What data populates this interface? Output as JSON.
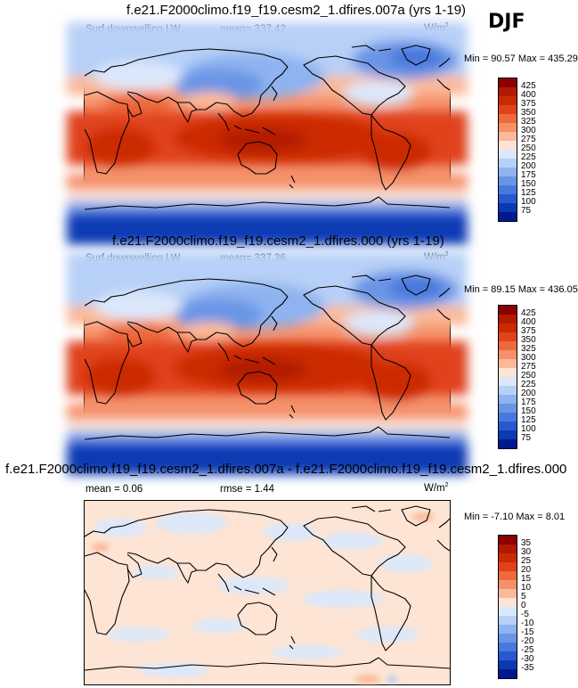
{
  "season": "DJF",
  "panels": [
    {
      "title": "f.e21.F2000climo.f19_f19.cesm2_1.dfires.007a (yrs 1-19)",
      "left_label": "Surf downwelling LW",
      "center_label": "mean= 337.42",
      "units_base": "W/m",
      "units_exp": "2",
      "minmax": "Min =  90.57 Max = 435.29",
      "colorbar": {
        "labels": [
          "425",
          "400",
          "375",
          "350",
          "325",
          "300",
          "275",
          "250",
          "225",
          "200",
          "175",
          "150",
          "125",
          "100",
          "75"
        ],
        "colors": [
          "#8c0000",
          "#b21a00",
          "#cc2a00",
          "#e0431a",
          "#ee6a3c",
          "#f5916a",
          "#fbb99a",
          "#fde4d4",
          "#dbe8fb",
          "#b7d0f7",
          "#8eb3f0",
          "#6a95e6",
          "#4778dc",
          "#2659d0",
          "#0a3ab3",
          "#001a8c"
        ]
      },
      "map_type": "absolute"
    },
    {
      "title": "f.e21.F2000climo.f19_f19.cesm2_1.dfires.000 (yrs 1-19)",
      "left_label": "Surf downwelling LW",
      "center_label": "mean= 337.36",
      "units_base": "W/m",
      "units_exp": "2",
      "minmax": "Min =  89.15 Max = 436.05",
      "colorbar": {
        "labels": [
          "425",
          "400",
          "375",
          "350",
          "325",
          "300",
          "275",
          "250",
          "225",
          "200",
          "175",
          "150",
          "125",
          "100",
          "75"
        ],
        "colors": [
          "#8c0000",
          "#b21a00",
          "#cc2a00",
          "#e0431a",
          "#ee6a3c",
          "#f5916a",
          "#fbb99a",
          "#fde4d4",
          "#dbe8fb",
          "#b7d0f7",
          "#8eb3f0",
          "#6a95e6",
          "#4778dc",
          "#2659d0",
          "#0a3ab3",
          "#001a8c"
        ]
      },
      "map_type": "absolute"
    },
    {
      "title": "f.e21.F2000climo.f19_f19.cesm2_1.dfires.007a - f.e21.F2000climo.f19_f19.cesm2_1.dfires.000",
      "left_label": "mean =   0.06",
      "center_label": "rmse =   1.44",
      "units_base": "W/m",
      "units_exp": "2",
      "minmax": "Min =  -7.10 Max =   8.01",
      "colorbar": {
        "labels": [
          "35",
          "30",
          "25",
          "20",
          "15",
          "10",
          "5",
          "0",
          "-5",
          "-10",
          "-15",
          "-20",
          "-25",
          "-30",
          "-35"
        ],
        "colors": [
          "#8c0000",
          "#b21a00",
          "#cc2a00",
          "#e0431a",
          "#ee6a3c",
          "#f5916a",
          "#fbb99a",
          "#fde4d4",
          "#dbe8fb",
          "#b7d0f7",
          "#8eb3f0",
          "#6a95e6",
          "#4778dc",
          "#2659d0",
          "#0a3ab3",
          "#001a8c"
        ]
      },
      "map_type": "difference"
    }
  ]
}
